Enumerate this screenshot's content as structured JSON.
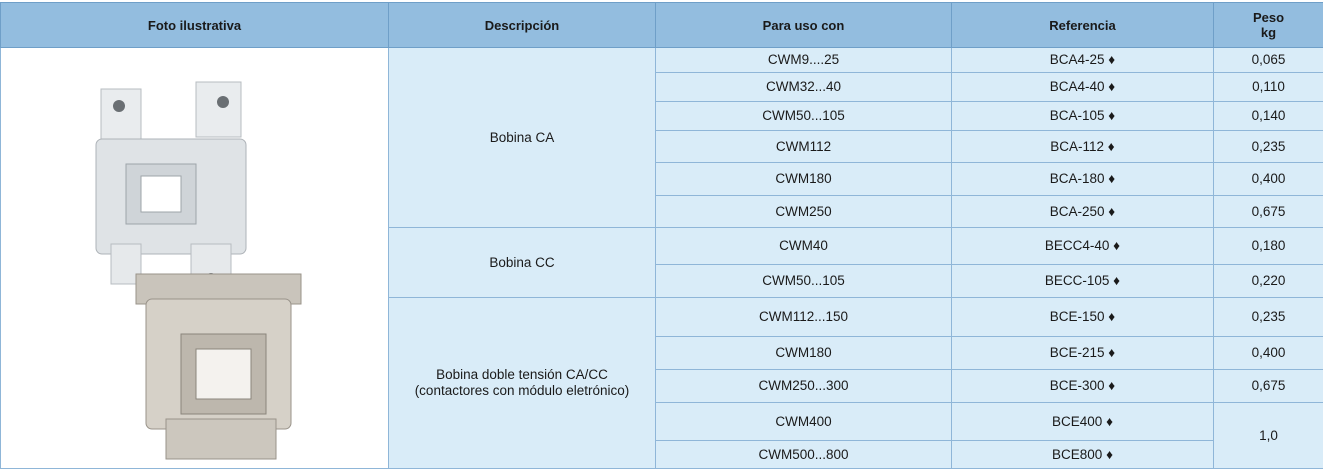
{
  "table": {
    "header": [
      "Foto ilustrativa",
      "Descripción",
      "Para uso con",
      "Referencia",
      "Peso\nkg"
    ],
    "groups": [
      {
        "description": "Bobina CA",
        "rows": [
          {
            "uso": "CWM9....25",
            "referencia": "BCA4-25 ♦",
            "peso": "0,065"
          },
          {
            "uso": "CWM32...40",
            "referencia": "BCA4-40 ♦",
            "peso": "0,110"
          },
          {
            "uso": "CWM50...105",
            "referencia": "BCA-105 ♦",
            "peso": "0,140"
          },
          {
            "uso": "CWM112",
            "referencia": "BCA-112 ♦",
            "peso": "0,235"
          },
          {
            "uso": "CWM180",
            "referencia": "BCA-180 ♦",
            "peso": "0,400"
          },
          {
            "uso": "CWM250",
            "referencia": "BCA-250 ♦",
            "peso": "0,675"
          }
        ]
      },
      {
        "description": "Bobina CC",
        "rows": [
          {
            "uso": "CWM40",
            "referencia": "BECC4-40 ♦",
            "peso": "0,180"
          },
          {
            "uso": "CWM50...105",
            "referencia": "BECC-105 ♦",
            "peso": "0,220"
          }
        ]
      },
      {
        "description": "Bobina doble tensión CA/CC\n(contactores con módulo eletrónico)",
        "rows": [
          {
            "uso": "CWM112...150",
            "referencia": "BCE-150 ♦",
            "peso": "0,235"
          },
          {
            "uso": "CWM180",
            "referencia": "BCE-215 ♦",
            "peso": "0,400"
          },
          {
            "uso": "CWM250...300",
            "referencia": "BCE-300 ♦",
            "peso": "0,675"
          },
          {
            "uso": "CWM400",
            "referencia": "BCE400 ♦",
            "peso": "1,0"
          },
          {
            "uso": "CWM500...800",
            "referencia": "BCE800 ♦"
          }
        ]
      }
    ]
  }
}
